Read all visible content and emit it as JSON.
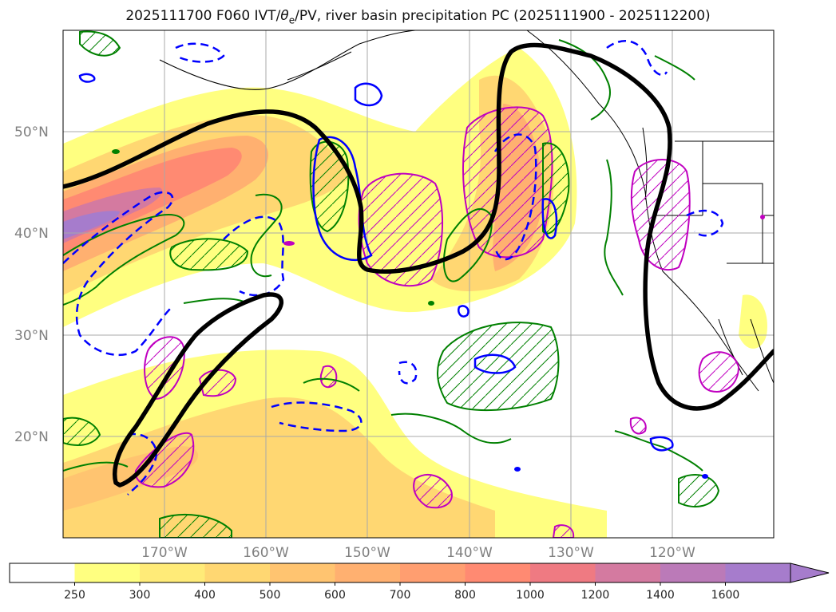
{
  "title": {
    "prefix": "2025111700 F060 IVT/",
    "theta_symbol": "θ",
    "theta_sub": "e",
    "suffix": "/PV, river basin precipitation PC (2025111900 - 2025112200)"
  },
  "map": {
    "lon_range": [
      -180,
      -110
    ],
    "lat_range": [
      10,
      60
    ],
    "lat_ticks": [
      {
        "value": 50,
        "label": "50°N"
      },
      {
        "value": 40,
        "label": "40°N"
      },
      {
        "value": 30,
        "label": "30°N"
      },
      {
        "value": 20,
        "label": "20°N"
      }
    ],
    "lon_ticks": [
      {
        "value": -170,
        "label": "170°W"
      },
      {
        "value": -160,
        "label": "160°W"
      },
      {
        "value": -150,
        "label": "150°W"
      },
      {
        "value": -140,
        "label": "140°W"
      },
      {
        "value": -130,
        "label": "130°W"
      },
      {
        "value": -120,
        "label": "120°W"
      }
    ],
    "colors": {
      "ivt_250": "#ffff80",
      "ivt_400": "#ffd772",
      "ivt_600": "#ffb070",
      "ivt_800": "#ff8a72",
      "ivt_1200": "#d47aa0",
      "ivt_1600": "#a67ccc",
      "pv_contour": "#000000",
      "green_contour": "#008000",
      "blue_contour": "#0000ff",
      "magenta_contour": "#c000c0"
    }
  },
  "colorbar": {
    "levels": [
      "250",
      "300",
      "400",
      "500",
      "600",
      "700",
      "800",
      "1000",
      "1200",
      "1400",
      "1600"
    ],
    "colors": [
      "#ffffff",
      "#ffff80",
      "#ffeb78",
      "#ffd772",
      "#ffc470",
      "#ffb070",
      "#ff9e70",
      "#ff8a72",
      "#ef7a82",
      "#d47aa0",
      "#bb7ab8",
      "#a67ccc"
    ],
    "extend": "max"
  }
}
